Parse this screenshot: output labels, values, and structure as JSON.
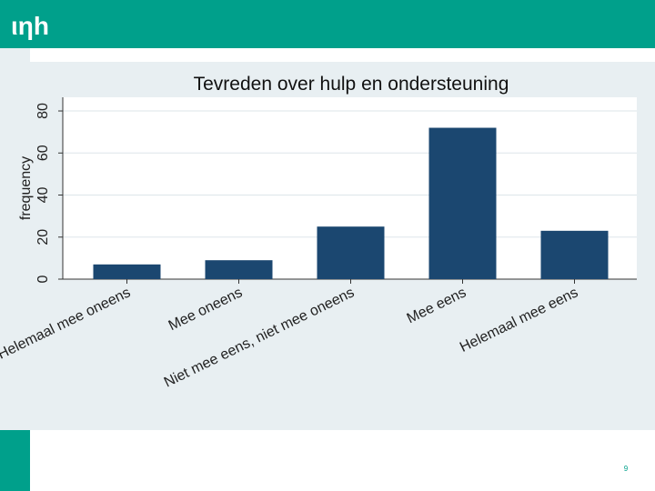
{
  "logo": "ιηh",
  "page_number": "9",
  "chart_data": {
    "type": "bar",
    "title": "Tevreden over hulp en ondersteuning",
    "y_label": "frequency",
    "categories": [
      "Helemaal mee oneens",
      "Mee oneens",
      "Niet mee eens, niet mee oneens",
      "Mee eens",
      "Helemaal mee eens"
    ],
    "values": [
      7,
      9,
      25,
      72,
      23
    ],
    "color": "#1b4770",
    "ylim": [
      0,
      86.5
    ],
    "yticks": [
      0,
      20,
      40,
      60,
      80
    ],
    "grid": true
  }
}
